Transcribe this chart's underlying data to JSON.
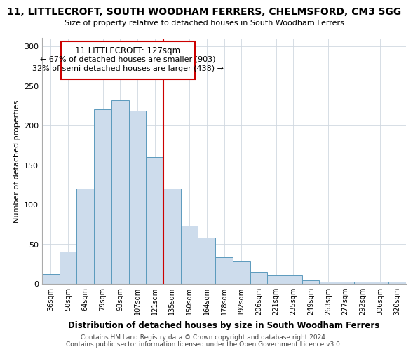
{
  "title1": "11, LITTLECROFT, SOUTH WOODHAM FERRERS, CHELMSFORD, CM3 5GG",
  "title2": "Size of property relative to detached houses in South Woodham Ferrers",
  "xlabel": "Distribution of detached houses by size in South Woodham Ferrers",
  "ylabel": "Number of detached properties",
  "bar_labels": [
    "36sqm",
    "50sqm",
    "64sqm",
    "79sqm",
    "93sqm",
    "107sqm",
    "121sqm",
    "135sqm",
    "150sqm",
    "164sqm",
    "178sqm",
    "192sqm",
    "206sqm",
    "221sqm",
    "235sqm",
    "249sqm",
    "263sqm",
    "277sqm",
    "292sqm",
    "306sqm",
    "320sqm"
  ],
  "bar_values": [
    12,
    40,
    120,
    220,
    232,
    218,
    160,
    120,
    73,
    58,
    33,
    28,
    15,
    10,
    10,
    4,
    2,
    2,
    2,
    2,
    2
  ],
  "bar_color": "#cddcec",
  "bar_edge_color": "#5b9abd",
  "vline_color": "#cc0000",
  "annotation_title": "11 LITTLECROFT: 127sqm",
  "annotation_line1": "← 67% of detached houses are smaller (903)",
  "annotation_line2": "32% of semi-detached houses are larger (438) →",
  "annotation_box_color": "#ffffff",
  "annotation_box_edge": "#cc0000",
  "ylim": [
    0,
    310
  ],
  "yticks": [
    0,
    50,
    100,
    150,
    200,
    250,
    300
  ],
  "footer1": "Contains HM Land Registry data © Crown copyright and database right 2024.",
  "footer2": "Contains public sector information licensed under the Open Government Licence v3.0."
}
